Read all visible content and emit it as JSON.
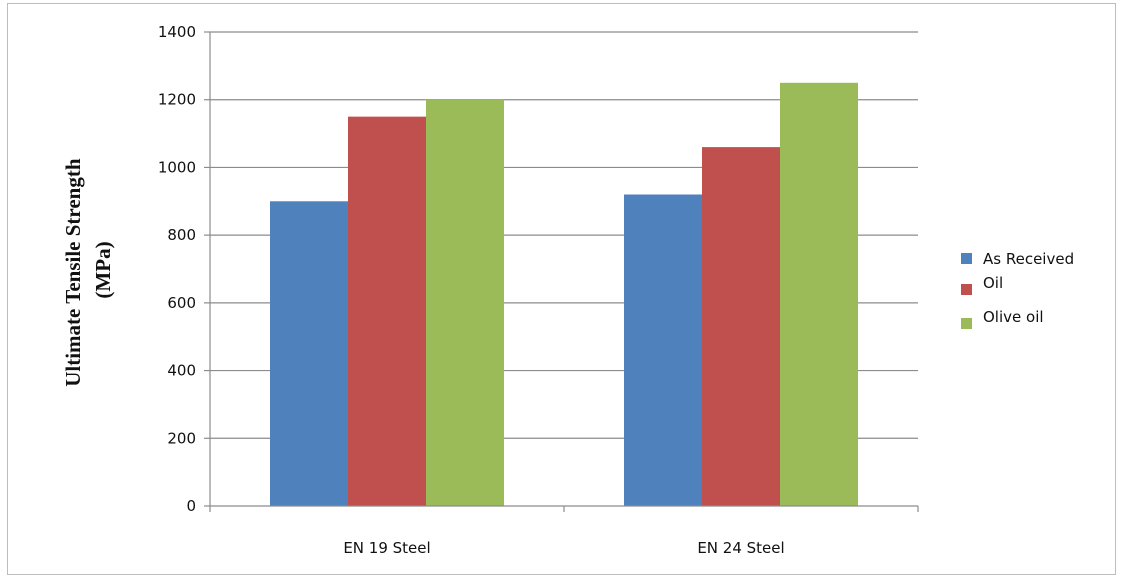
{
  "chart_data": {
    "type": "bar",
    "title": "",
    "xlabel": "",
    "ylabel_lines": [
      "Ultimate Tensile Strength",
      "(MPa)"
    ],
    "ylim": [
      0,
      1400
    ],
    "yticks": [
      0,
      200,
      400,
      600,
      800,
      1000,
      1200,
      1400
    ],
    "grid": true,
    "legend_position": "right",
    "categories": [
      "EN 19 Steel",
      "EN 24 Steel"
    ],
    "series": [
      {
        "name": "As Received",
        "color": "#4f81bd",
        "values": [
          900,
          920
        ]
      },
      {
        "name": "Oil",
        "color": "#c0504d",
        "values": [
          1150,
          1060
        ]
      },
      {
        "name": "Olive oil",
        "color": "#9bbb59",
        "values": [
          1200,
          1250
        ]
      }
    ]
  }
}
